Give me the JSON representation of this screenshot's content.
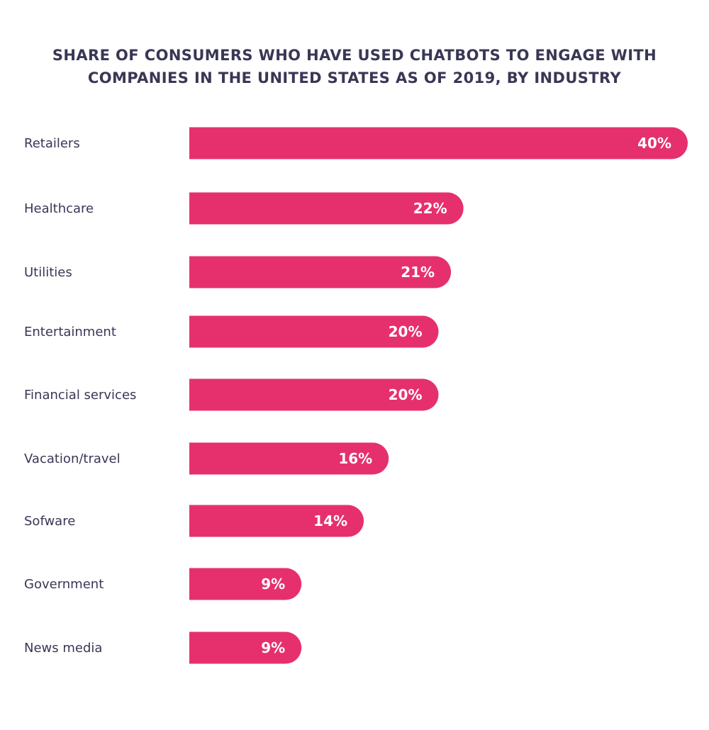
{
  "chart_data": {
    "type": "bar",
    "orientation": "horizontal",
    "title_lines": [
      "SHARE OF CONSUMERS WHO HAVE USED CHATBOTS TO ENGAGE WITH",
      "COMPANIES IN THE UNITED STATES AS OF 2019, BY INDUSTRY"
    ],
    "categories": [
      "Retailers",
      "Healthcare",
      "Utilities",
      "Entertainment",
      "Financial services",
      "Vacation/travel",
      "Sofware",
      "Government",
      "News media"
    ],
    "values": [
      40,
      22,
      21,
      20,
      20,
      16,
      14,
      9,
      9
    ],
    "value_labels": [
      "40%",
      "22%",
      "21%",
      "20%",
      "20%",
      "16%",
      "14%",
      "9%",
      "9%"
    ],
    "unit": "%",
    "xlim": [
      0,
      40
    ],
    "grid": false,
    "legend": "none",
    "colors": {
      "bar": "#E6306D",
      "text": "#393755",
      "value_label": "#FFFFFF"
    }
  }
}
